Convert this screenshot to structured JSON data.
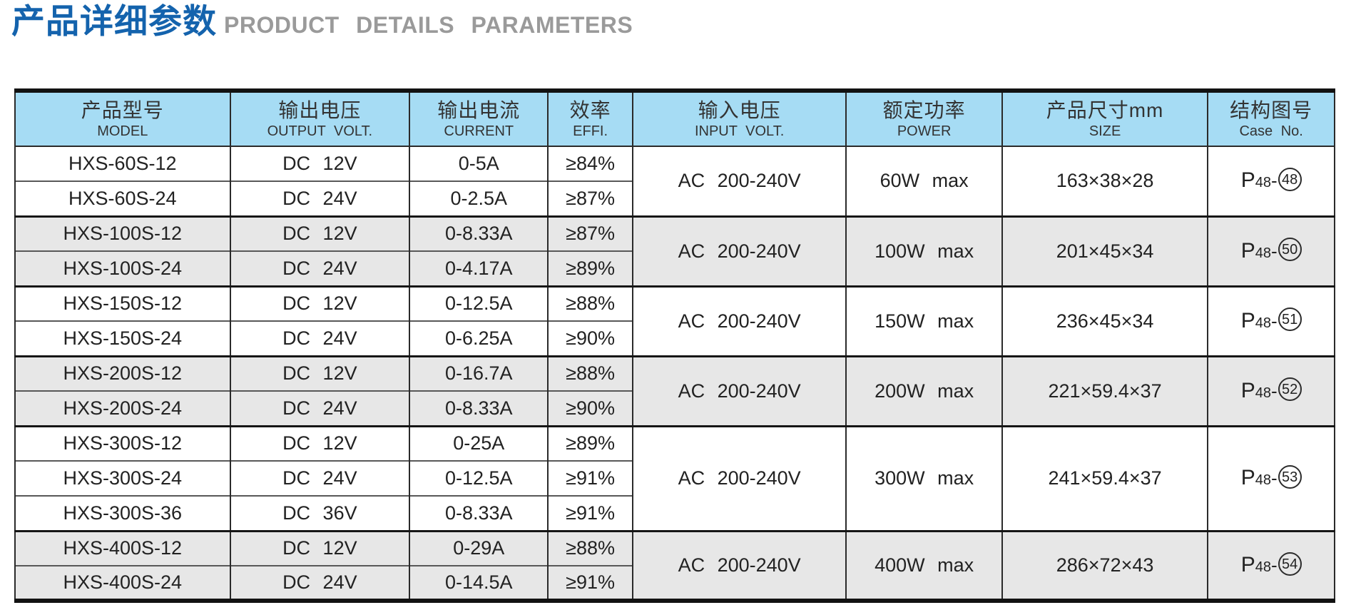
{
  "page": {
    "title_zh": "产品详细参数",
    "title_en": "PRODUCT DETAILS PARAMETERS"
  },
  "colors": {
    "title_blue": "#1463ad",
    "title_gray": "#9a9a9a",
    "header_bg": "#a6dcf4",
    "row_alt_bg": "#e7e7e7",
    "border_dark": "#2a2a2a"
  },
  "table": {
    "headers": [
      {
        "zh": "产品型号",
        "en": "MODEL"
      },
      {
        "zh": "输出电压",
        "en": "OUTPUT VOLT."
      },
      {
        "zh": "输出电流",
        "en": "CURRENT"
      },
      {
        "zh": "效率",
        "en": "EFFI."
      },
      {
        "zh": "输入电压",
        "en": "INPUT VOLT."
      },
      {
        "zh": "额定功率",
        "en": "POWER"
      },
      {
        "zh": "产品尺寸mm",
        "en": "SIZE"
      },
      {
        "zh": "结构图号",
        "en": "Case No."
      }
    ],
    "groups": [
      {
        "rows": [
          {
            "model": "HXS-60S-12",
            "volt": "DC 12V",
            "current": "0-5A",
            "effi": "≥84%"
          },
          {
            "model": "HXS-60S-24",
            "volt": "DC 24V",
            "current": "0-2.5A",
            "effi": "≥87%"
          }
        ],
        "input": "AC 200-240V",
        "power": "60W max",
        "size": "163×38×28",
        "case": {
          "p": "P",
          "sub": "48",
          "dash": "-",
          "num": "48"
        }
      },
      {
        "rows": [
          {
            "model": "HXS-100S-12",
            "volt": "DC 12V",
            "current": "0-8.33A",
            "effi": "≥87%"
          },
          {
            "model": "HXS-100S-24",
            "volt": "DC 24V",
            "current": "0-4.17A",
            "effi": "≥89%"
          }
        ],
        "input": "AC 200-240V",
        "power": "100W max",
        "size": "201×45×34",
        "case": {
          "p": "P",
          "sub": "48",
          "dash": "-",
          "num": "50"
        }
      },
      {
        "rows": [
          {
            "model": "HXS-150S-12",
            "volt": "DC 12V",
            "current": "0-12.5A",
            "effi": "≥88%"
          },
          {
            "model": "HXS-150S-24",
            "volt": "DC 24V",
            "current": "0-6.25A",
            "effi": "≥90%"
          }
        ],
        "input": "AC 200-240V",
        "power": "150W max",
        "size": "236×45×34",
        "case": {
          "p": "P",
          "sub": "48",
          "dash": "-",
          "num": "51"
        }
      },
      {
        "rows": [
          {
            "model": "HXS-200S-12",
            "volt": "DC 12V",
            "current": "0-16.7A",
            "effi": "≥88%"
          },
          {
            "model": "HXS-200S-24",
            "volt": "DC 24V",
            "current": "0-8.33A",
            "effi": "≥90%"
          }
        ],
        "input": "AC 200-240V",
        "power": "200W max",
        "size": "221×59.4×37",
        "case": {
          "p": "P",
          "sub": "48",
          "dash": "-",
          "num": "52"
        }
      },
      {
        "rows": [
          {
            "model": "HXS-300S-12",
            "volt": "DC 12V",
            "current": "0-25A",
            "effi": "≥89%"
          },
          {
            "model": "HXS-300S-24",
            "volt": "DC 24V",
            "current": "0-12.5A",
            "effi": "≥91%"
          },
          {
            "model": "HXS-300S-36",
            "volt": "DC 36V",
            "current": "0-8.33A",
            "effi": "≥91%"
          }
        ],
        "input": "AC 200-240V",
        "power": "300W max",
        "size": "241×59.4×37",
        "case": {
          "p": "P",
          "sub": "48",
          "dash": "-",
          "num": "53"
        }
      },
      {
        "rows": [
          {
            "model": "HXS-400S-12",
            "volt": "DC 12V",
            "current": "0-29A",
            "effi": "≥88%"
          },
          {
            "model": "HXS-400S-24",
            "volt": "DC 24V",
            "current": "0-14.5A",
            "effi": "≥91%"
          }
        ],
        "input": "AC 200-240V",
        "power": "400W max",
        "size": "286×72×43",
        "case": {
          "p": "P",
          "sub": "48",
          "dash": "-",
          "num": "54"
        }
      }
    ]
  }
}
